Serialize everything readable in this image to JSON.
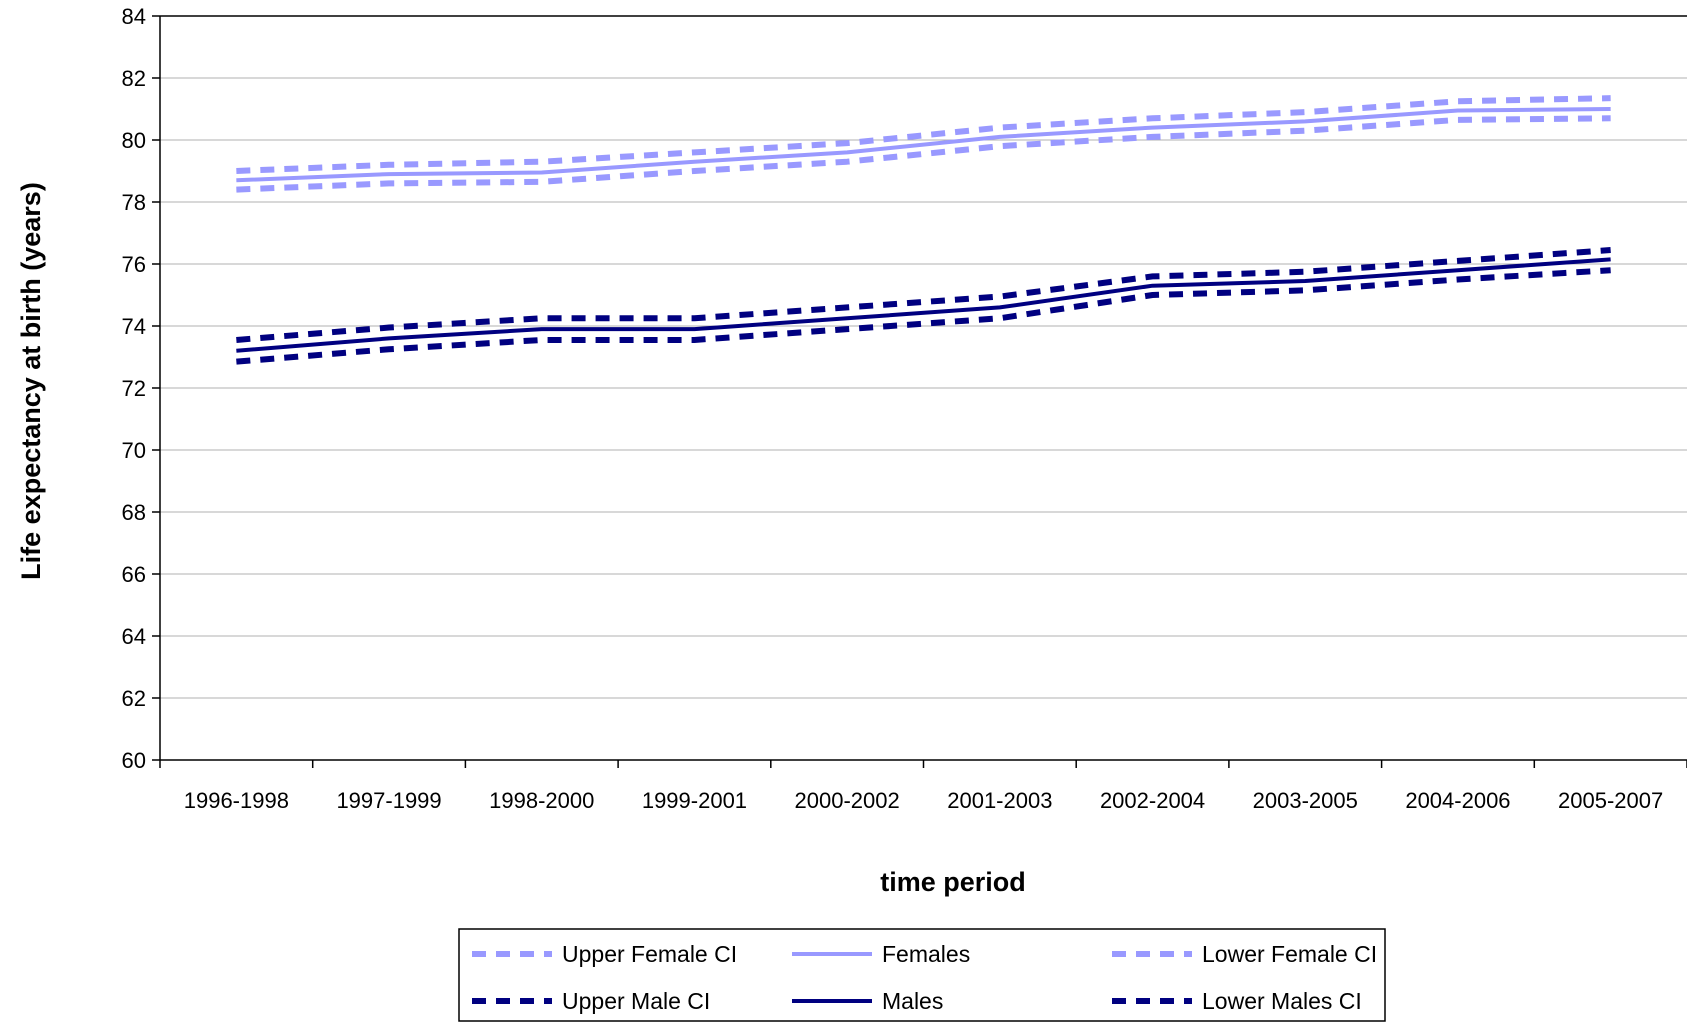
{
  "chart_data": {
    "type": "line",
    "title": "",
    "xlabel": "time period",
    "ylabel": "Life expectancy at birth (years)",
    "ylim": [
      60,
      84
    ],
    "ytick_step": 2,
    "yticks": [
      "60",
      "62",
      "64",
      "66",
      "68",
      "70",
      "72",
      "74",
      "76",
      "78",
      "80",
      "82",
      "84"
    ],
    "grid": "horizontal",
    "legend_position": "bottom",
    "categories": [
      "1996-1998",
      "1997-1999",
      "1998-2000",
      "1999-2001",
      "2000-2002",
      "2001-2003",
      "2002-2004",
      "2003-2005",
      "2004-2006",
      "2005-2007"
    ],
    "series": [
      {
        "name": "Upper Female CI",
        "color": "#9999ff",
        "style": "dashed",
        "values": [
          79.0,
          79.2,
          79.3,
          79.6,
          79.9,
          80.4,
          80.7,
          80.9,
          81.25,
          81.35
        ]
      },
      {
        "name": "Females",
        "color": "#9999ff",
        "style": "solid",
        "values": [
          78.7,
          78.9,
          78.95,
          79.3,
          79.6,
          80.1,
          80.4,
          80.6,
          80.95,
          81.0
        ]
      },
      {
        "name": "Lower Female CI",
        "color": "#9999ff",
        "style": "dashed",
        "values": [
          78.4,
          78.6,
          78.65,
          79.0,
          79.3,
          79.8,
          80.1,
          80.3,
          80.65,
          80.7
        ]
      },
      {
        "name": "Upper Male CI",
        "color": "#000080",
        "style": "dashed",
        "values": [
          73.55,
          73.95,
          74.25,
          74.25,
          74.6,
          74.95,
          75.6,
          75.75,
          76.1,
          76.45
        ]
      },
      {
        "name": "Males",
        "color": "#000080",
        "style": "solid",
        "values": [
          73.2,
          73.6,
          73.9,
          73.9,
          74.25,
          74.6,
          75.3,
          75.45,
          75.8,
          76.15
        ]
      },
      {
        "name": "Lower Males CI",
        "color": "#000080",
        "style": "dashed",
        "values": [
          72.85,
          73.25,
          73.55,
          73.55,
          73.9,
          74.25,
          75.0,
          75.15,
          75.5,
          75.8
        ]
      }
    ]
  }
}
